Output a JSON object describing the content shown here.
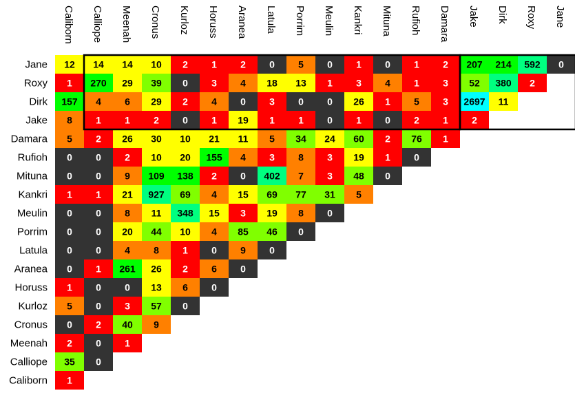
{
  "chart_data": {
    "type": "heatmap",
    "columns": [
      "Caliborn",
      "Calliope",
      "Meenah",
      "Cronus",
      "Kurloz",
      "Horuss",
      "Aranea",
      "Latula",
      "Porrim",
      "Meulin",
      "Kankri",
      "Mituna",
      "Rufioh",
      "Damara",
      "Jake",
      "Dirk",
      "Roxy",
      "Jane"
    ],
    "rows": [
      "Jane",
      "Roxy",
      "Dirk",
      "Jake",
      "Damara",
      "Rufioh",
      "Mituna",
      "Kankri",
      "Meulin",
      "Porrim",
      "Latula",
      "Aranea",
      "Horuss",
      "Kurloz",
      "Cronus",
      "Meenah",
      "Calliope",
      "Caliborn"
    ],
    "values": [
      [
        12,
        14,
        14,
        10,
        2,
        1,
        2,
        0,
        5,
        0,
        1,
        0,
        1,
        2,
        207,
        214,
        592,
        0
      ],
      [
        1,
        270,
        29,
        39,
        0,
        3,
        4,
        18,
        13,
        1,
        3,
        4,
        1,
        3,
        52,
        380,
        2
      ],
      [
        157,
        4,
        6,
        29,
        2,
        4,
        0,
        3,
        0,
        0,
        26,
        1,
        5,
        3,
        2697,
        11
      ],
      [
        8,
        1,
        1,
        2,
        0,
        1,
        19,
        1,
        1,
        0,
        1,
        0,
        2,
        1,
        2
      ],
      [
        5,
        2,
        26,
        30,
        10,
        21,
        11,
        5,
        34,
        24,
        60,
        2,
        76,
        1
      ],
      [
        0,
        0,
        2,
        10,
        20,
        155,
        4,
        3,
        8,
        3,
        19,
        1,
        0
      ],
      [
        0,
        0,
        9,
        109,
        138,
        2,
        0,
        402,
        7,
        3,
        48,
        0
      ],
      [
        1,
        1,
        21,
        927,
        69,
        4,
        15,
        69,
        77,
        31,
        5
      ],
      [
        0,
        0,
        8,
        11,
        348,
        15,
        3,
        19,
        8,
        0
      ],
      [
        0,
        0,
        20,
        44,
        10,
        4,
        85,
        46,
        0
      ],
      [
        0,
        0,
        4,
        8,
        1,
        0,
        9,
        0
      ],
      [
        0,
        1,
        261,
        26,
        2,
        6,
        0
      ],
      [
        1,
        0,
        0,
        13,
        6,
        0
      ],
      [
        5,
        0,
        3,
        57,
        0
      ],
      [
        0,
        2,
        40,
        9
      ],
      [
        2,
        0,
        1
      ],
      [
        35,
        0
      ],
      [
        1
      ]
    ],
    "colors": {
      "dark_zero": "#333333",
      "red": "#ff0000",
      "orange": "#ff8000",
      "yellow": "#ffff00",
      "yellow_green": "#80ff00",
      "green": "#00ff00",
      "spring_green": "#00ff80",
      "cyan": "#00ffff"
    },
    "text_colors": {
      "on_dark": "#ffffff",
      "on_red": "#ffffff",
      "on_light": "#000000"
    },
    "outlined_blocks": [
      {
        "rows": [
          "Jane",
          "Jake"
        ],
        "columns": [
          "Calliope",
          "Damara"
        ]
      },
      {
        "rows": [
          "Jane",
          "Jake"
        ],
        "columns": [
          "Jake",
          "Jane"
        ]
      }
    ]
  }
}
